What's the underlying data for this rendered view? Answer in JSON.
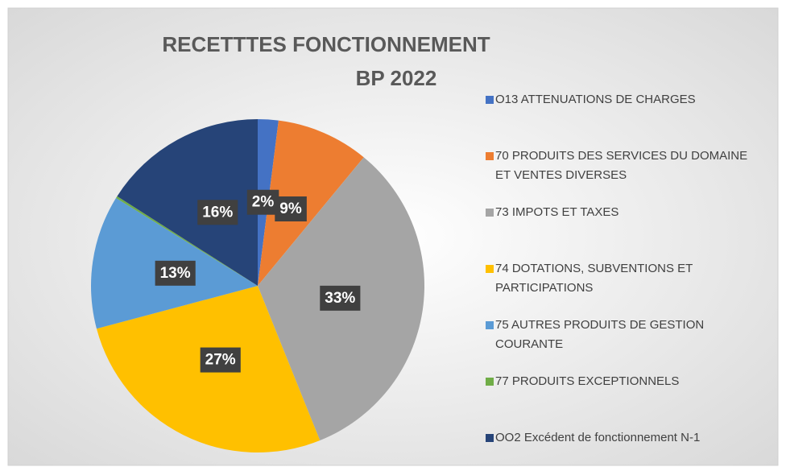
{
  "chart_data": {
    "type": "pie",
    "title": [
      "RECETTTES FONCTIONNEMENT",
      "BP 2022"
    ],
    "categories": [
      "O13 ATTENUATIONS DE CHARGES",
      "70 PRODUITS DES SERVICES DU DOMAINE ET VENTES DIVERSES",
      "73 IMPOTS ET TAXES",
      "74 DOTATIONS, SUBVENTIONS ET PARTICIPATIONS",
      "75 AUTRES PRODUITS DE GESTION COURANTE",
      "77 PRODUITS EXCEPTIONNELS",
      "OO2 Excédent de fonctionnement N-1"
    ],
    "values": [
      2,
      9,
      33,
      27,
      13,
      0.2,
      16
    ],
    "value_labels": [
      "2%",
      "9%",
      "33%",
      "27%",
      "13%",
      null,
      "16%"
    ],
    "colors": [
      "#4472c4",
      "#ed7d31",
      "#a5a5a5",
      "#ffc000",
      "#5b9bd5",
      "#70ad47",
      "#264478"
    ],
    "legend": "right"
  }
}
